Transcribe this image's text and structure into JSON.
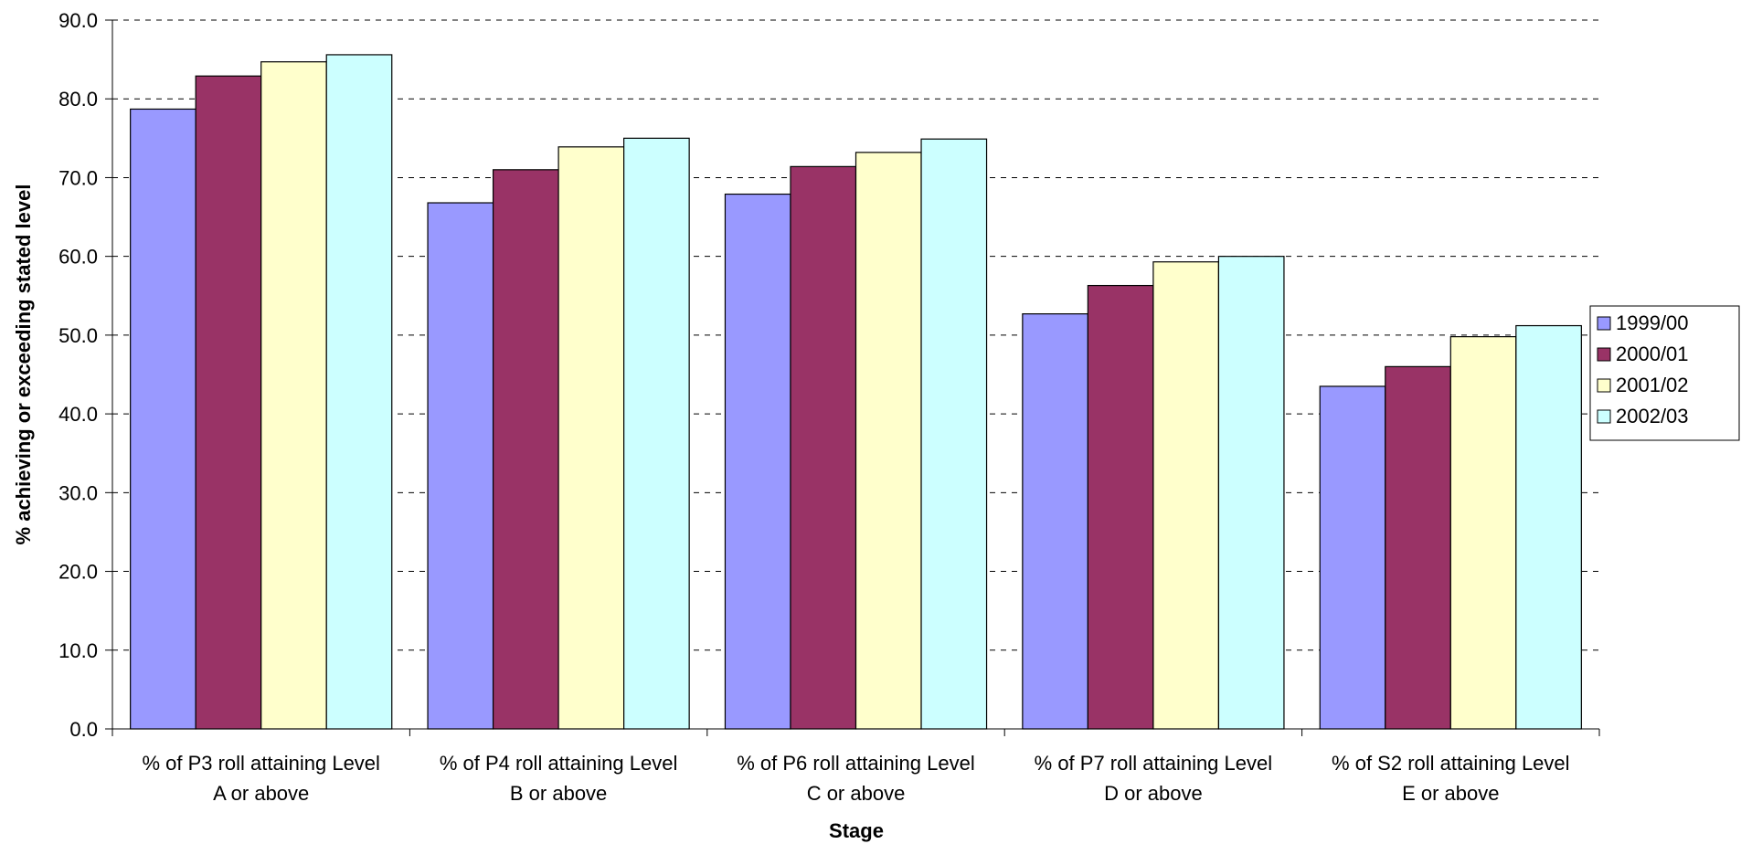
{
  "chart_data": {
    "type": "bar",
    "title": "",
    "xlabel": "Stage",
    "ylabel": "% achieving or exceeding stated level",
    "ylim": [
      0,
      90
    ],
    "ytick_step": 10,
    "ytick_format": "one-decimal",
    "grid": "horizontal-dashed",
    "legend_position": "right",
    "categories": [
      [
        "% of P3 roll attaining Level",
        "A or above"
      ],
      [
        "% of P4 roll attaining Level",
        "B or above"
      ],
      [
        "% of P6 roll attaining Level",
        "C or above"
      ],
      [
        "% of P7 roll attaining Level",
        "D or above"
      ],
      [
        "% of S2 roll attaining Level",
        "E or above"
      ]
    ],
    "series": [
      {
        "name": "1999/00",
        "color": "#9999ff",
        "values": [
          78.7,
          66.8,
          67.9,
          52.7,
          43.5
        ]
      },
      {
        "name": "2000/01",
        "color": "#993366",
        "values": [
          82.9,
          71.0,
          71.4,
          56.3,
          46.0
        ]
      },
      {
        "name": "2001/02",
        "color": "#ffffcc",
        "values": [
          84.7,
          73.9,
          73.2,
          59.3,
          49.8
        ]
      },
      {
        "name": "2002/03",
        "color": "#ccffff",
        "values": [
          85.6,
          75.0,
          74.9,
          60.0,
          51.2
        ]
      }
    ]
  }
}
